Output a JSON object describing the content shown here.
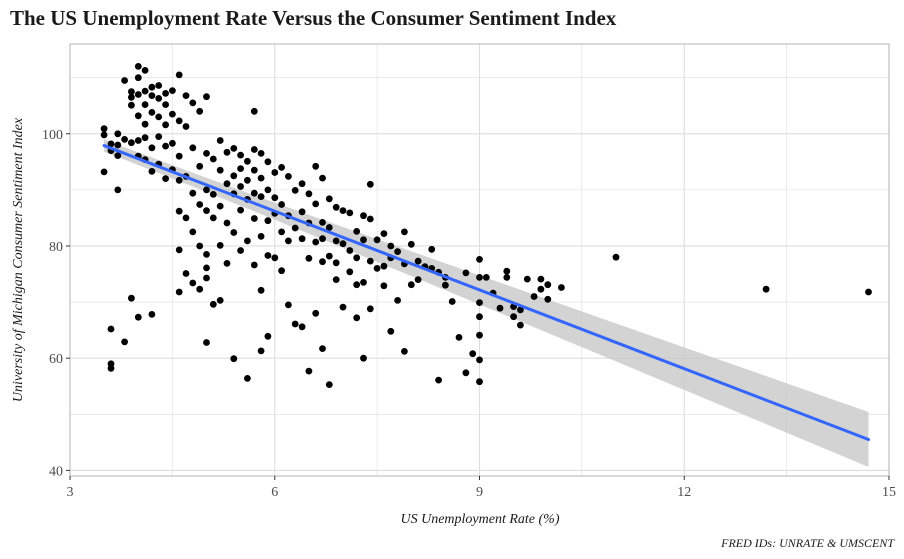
{
  "chart_data": {
    "type": "scatter",
    "title": "The US Unemployment Rate Versus the Consumer Sentiment Index",
    "xlabel": "US Unemployment Rate (%)",
    "ylabel": "University of Michigan Consumer Sentiment Index",
    "caption": "FRED IDs: UNRATE & UMSCENT",
    "xlim": [
      3.0,
      15.0
    ],
    "ylim": [
      39.0,
      116.0
    ],
    "x_ticks": [
      3,
      6,
      9,
      12,
      15
    ],
    "y_ticks": [
      40,
      60,
      80,
      100
    ],
    "grid": true,
    "legend": "none",
    "colors": {
      "points": "#000000",
      "trend": "#3366ff",
      "band": "#c8c8c8",
      "grid": "#dedede",
      "panel_border": "#b3b3b3"
    },
    "trend_line": {
      "method": "linear",
      "x": [
        3.5,
        14.7
      ],
      "y": [
        97.9,
        45.5
      ],
      "band_halfwidth": [
        1.1,
        4.9
      ]
    },
    "points": [
      [
        3.5,
        100.9
      ],
      [
        3.5,
        99.8
      ],
      [
        3.5,
        93.2
      ],
      [
        3.6,
        98.2
      ],
      [
        3.6,
        97.0
      ],
      [
        3.6,
        65.2
      ],
      [
        3.6,
        59.0
      ],
      [
        3.6,
        58.2
      ],
      [
        3.7,
        100.0
      ],
      [
        3.7,
        98.0
      ],
      [
        3.7,
        96.1
      ],
      [
        3.7,
        90.0
      ],
      [
        3.8,
        109.5
      ],
      [
        3.8,
        99.0
      ],
      [
        3.8,
        62.9
      ],
      [
        3.9,
        107.5
      ],
      [
        3.9,
        106.5
      ],
      [
        3.9,
        105.1
      ],
      [
        3.9,
        98.4
      ],
      [
        3.9,
        70.7
      ],
      [
        4.0,
        112.0
      ],
      [
        4.0,
        110.0
      ],
      [
        4.0,
        107.0
      ],
      [
        4.0,
        103.2
      ],
      [
        4.0,
        98.8
      ],
      [
        4.0,
        96.0
      ],
      [
        4.0,
        67.3
      ],
      [
        4.1,
        111.3
      ],
      [
        4.1,
        107.6
      ],
      [
        4.1,
        105.2
      ],
      [
        4.1,
        101.7
      ],
      [
        4.1,
        99.3
      ],
      [
        4.1,
        95.4
      ],
      [
        4.2,
        108.3
      ],
      [
        4.2,
        106.8
      ],
      [
        4.2,
        103.8
      ],
      [
        4.2,
        97.5
      ],
      [
        4.2,
        93.3
      ],
      [
        4.2,
        67.8
      ],
      [
        4.3,
        108.6
      ],
      [
        4.3,
        106.3
      ],
      [
        4.3,
        103.0
      ],
      [
        4.3,
        99.5
      ],
      [
        4.3,
        94.6
      ],
      [
        4.4,
        107.2
      ],
      [
        4.4,
        105.2
      ],
      [
        4.4,
        101.6
      ],
      [
        4.4,
        97.8
      ],
      [
        4.4,
        92.0
      ],
      [
        4.5,
        107.7
      ],
      [
        4.5,
        103.5
      ],
      [
        4.5,
        98.3
      ],
      [
        4.5,
        93.6
      ],
      [
        4.6,
        110.5
      ],
      [
        4.6,
        102.3
      ],
      [
        4.6,
        96.0
      ],
      [
        4.6,
        91.7
      ],
      [
        4.6,
        86.2
      ],
      [
        4.6,
        79.3
      ],
      [
        4.6,
        71.8
      ],
      [
        4.7,
        106.8
      ],
      [
        4.7,
        101.3
      ],
      [
        4.7,
        92.4
      ],
      [
        4.7,
        85.0
      ],
      [
        4.7,
        75.1
      ],
      [
        4.8,
        105.5
      ],
      [
        4.8,
        97.5
      ],
      [
        4.8,
        89.4
      ],
      [
        4.8,
        82.5
      ],
      [
        4.8,
        73.4
      ],
      [
        4.9,
        104.0
      ],
      [
        4.9,
        94.2
      ],
      [
        4.9,
        87.4
      ],
      [
        4.9,
        80.0
      ],
      [
        4.9,
        72.3
      ],
      [
        5.0,
        106.6
      ],
      [
        5.0,
        96.5
      ],
      [
        5.0,
        90.0
      ],
      [
        5.0,
        86.3
      ],
      [
        5.0,
        78.5
      ],
      [
        5.0,
        76.1
      ],
      [
        5.0,
        74.3
      ],
      [
        5.0,
        62.8
      ],
      [
        5.1,
        95.5
      ],
      [
        5.1,
        89.2
      ],
      [
        5.1,
        85.0
      ],
      [
        5.1,
        69.6
      ],
      [
        5.2,
        98.8
      ],
      [
        5.2,
        93.5
      ],
      [
        5.2,
        87.1
      ],
      [
        5.2,
        80.1
      ],
      [
        5.2,
        70.3
      ],
      [
        5.3,
        96.7
      ],
      [
        5.3,
        91.1
      ],
      [
        5.3,
        84.1
      ],
      [
        5.3,
        76.9
      ],
      [
        5.4,
        97.4
      ],
      [
        5.4,
        92.5
      ],
      [
        5.4,
        89.3
      ],
      [
        5.4,
        82.4
      ],
      [
        5.4,
        59.9
      ],
      [
        5.5,
        96.2
      ],
      [
        5.5,
        93.8
      ],
      [
        5.5,
        90.6
      ],
      [
        5.5,
        86.4
      ],
      [
        5.5,
        79.2
      ],
      [
        5.6,
        95.1
      ],
      [
        5.6,
        91.7
      ],
      [
        5.6,
        88.3
      ],
      [
        5.6,
        80.9
      ],
      [
        5.6,
        56.4
      ],
      [
        5.7,
        104.0
      ],
      [
        5.7,
        97.2
      ],
      [
        5.7,
        93.5
      ],
      [
        5.7,
        89.4
      ],
      [
        5.7,
        84.9
      ],
      [
        5.7,
        76.6
      ],
      [
        5.8,
        96.5
      ],
      [
        5.8,
        92.1
      ],
      [
        5.8,
        88.8
      ],
      [
        5.8,
        81.7
      ],
      [
        5.8,
        72.1
      ],
      [
        5.8,
        61.3
      ],
      [
        5.9,
        95.0
      ],
      [
        5.9,
        90.0
      ],
      [
        5.9,
        84.5
      ],
      [
        5.9,
        78.3
      ],
      [
        5.9,
        63.9
      ],
      [
        6.0,
        93.1
      ],
      [
        6.0,
        88.6
      ],
      [
        6.0,
        85.8
      ],
      [
        6.0,
        77.9
      ],
      [
        6.1,
        94.0
      ],
      [
        6.1,
        87.4
      ],
      [
        6.1,
        82.5
      ],
      [
        6.1,
        75.6
      ],
      [
        6.2,
        92.4
      ],
      [
        6.2,
        85.4
      ],
      [
        6.2,
        80.9
      ],
      [
        6.2,
        69.5
      ],
      [
        6.3,
        89.9
      ],
      [
        6.3,
        83.2
      ],
      [
        6.3,
        66.1
      ],
      [
        6.4,
        91.1
      ],
      [
        6.4,
        86.1
      ],
      [
        6.4,
        81.3
      ],
      [
        6.4,
        65.6
      ],
      [
        6.5,
        89.3
      ],
      [
        6.5,
        84.1
      ],
      [
        6.5,
        77.8
      ],
      [
        6.5,
        57.7
      ],
      [
        6.6,
        94.2
      ],
      [
        6.6,
        87.5
      ],
      [
        6.6,
        80.7
      ],
      [
        6.6,
        68.0
      ],
      [
        6.7,
        92.1
      ],
      [
        6.7,
        84.2
      ],
      [
        6.7,
        81.3
      ],
      [
        6.7,
        77.2
      ],
      [
        6.7,
        61.7
      ],
      [
        6.8,
        88.4
      ],
      [
        6.8,
        83.3
      ],
      [
        6.8,
        78.2
      ],
      [
        6.8,
        55.3
      ],
      [
        6.9,
        86.9
      ],
      [
        6.9,
        80.9
      ],
      [
        6.9,
        77.0
      ],
      [
        6.9,
        74.0
      ],
      [
        7.0,
        86.3
      ],
      [
        7.0,
        80.4
      ],
      [
        7.0,
        69.1
      ],
      [
        7.1,
        85.9
      ],
      [
        7.1,
        79.2
      ],
      [
        7.1,
        75.4
      ],
      [
        7.2,
        82.6
      ],
      [
        7.2,
        77.9
      ],
      [
        7.2,
        73.1
      ],
      [
        7.2,
        67.2
      ],
      [
        7.3,
        85.4
      ],
      [
        7.3,
        81.1
      ],
      [
        7.3,
        73.5
      ],
      [
        7.3,
        60.0
      ],
      [
        7.4,
        91.0
      ],
      [
        7.4,
        84.8
      ],
      [
        7.4,
        77.3
      ],
      [
        7.4,
        68.8
      ],
      [
        7.5,
        81.1
      ],
      [
        7.5,
        76.0
      ],
      [
        7.6,
        82.2
      ],
      [
        7.6,
        76.4
      ],
      [
        7.6,
        72.9
      ],
      [
        7.7,
        80.0
      ],
      [
        7.7,
        77.9
      ],
      [
        7.7,
        64.8
      ],
      [
        7.8,
        79.0
      ],
      [
        7.8,
        70.3
      ],
      [
        7.9,
        82.5
      ],
      [
        7.9,
        76.8
      ],
      [
        7.9,
        61.2
      ],
      [
        8.0,
        80.3
      ],
      [
        8.0,
        73.1
      ],
      [
        8.1,
        77.3
      ],
      [
        8.1,
        74.0
      ],
      [
        8.2,
        76.3
      ],
      [
        8.3,
        79.4
      ],
      [
        8.3,
        76.0
      ],
      [
        8.4,
        75.3
      ],
      [
        8.4,
        56.1
      ],
      [
        8.5,
        74.4
      ],
      [
        8.5,
        73.0
      ],
      [
        8.6,
        70.1
      ],
      [
        8.7,
        63.7
      ],
      [
        8.8,
        75.2
      ],
      [
        8.8,
        57.4
      ],
      [
        8.9,
        60.8
      ],
      [
        9.0,
        77.6
      ],
      [
        9.0,
        74.4
      ],
      [
        9.0,
        69.9
      ],
      [
        9.0,
        67.4
      ],
      [
        9.0,
        64.1
      ],
      [
        9.0,
        59.7
      ],
      [
        9.0,
        55.8
      ],
      [
        9.1,
        74.4
      ],
      [
        9.2,
        71.6
      ],
      [
        9.3,
        68.9
      ],
      [
        9.4,
        75.5
      ],
      [
        9.4,
        74.4
      ],
      [
        9.5,
        69.2
      ],
      [
        9.5,
        67.4
      ],
      [
        9.6,
        68.6
      ],
      [
        9.6,
        65.9
      ],
      [
        9.7,
        74.1
      ],
      [
        9.8,
        71.0
      ],
      [
        9.9,
        74.1
      ],
      [
        9.9,
        72.3
      ],
      [
        10.0,
        73.1
      ],
      [
        10.0,
        70.5
      ],
      [
        10.2,
        72.6
      ],
      [
        11.0,
        78.0
      ],
      [
        13.2,
        72.3
      ],
      [
        14.7,
        71.8
      ]
    ]
  }
}
